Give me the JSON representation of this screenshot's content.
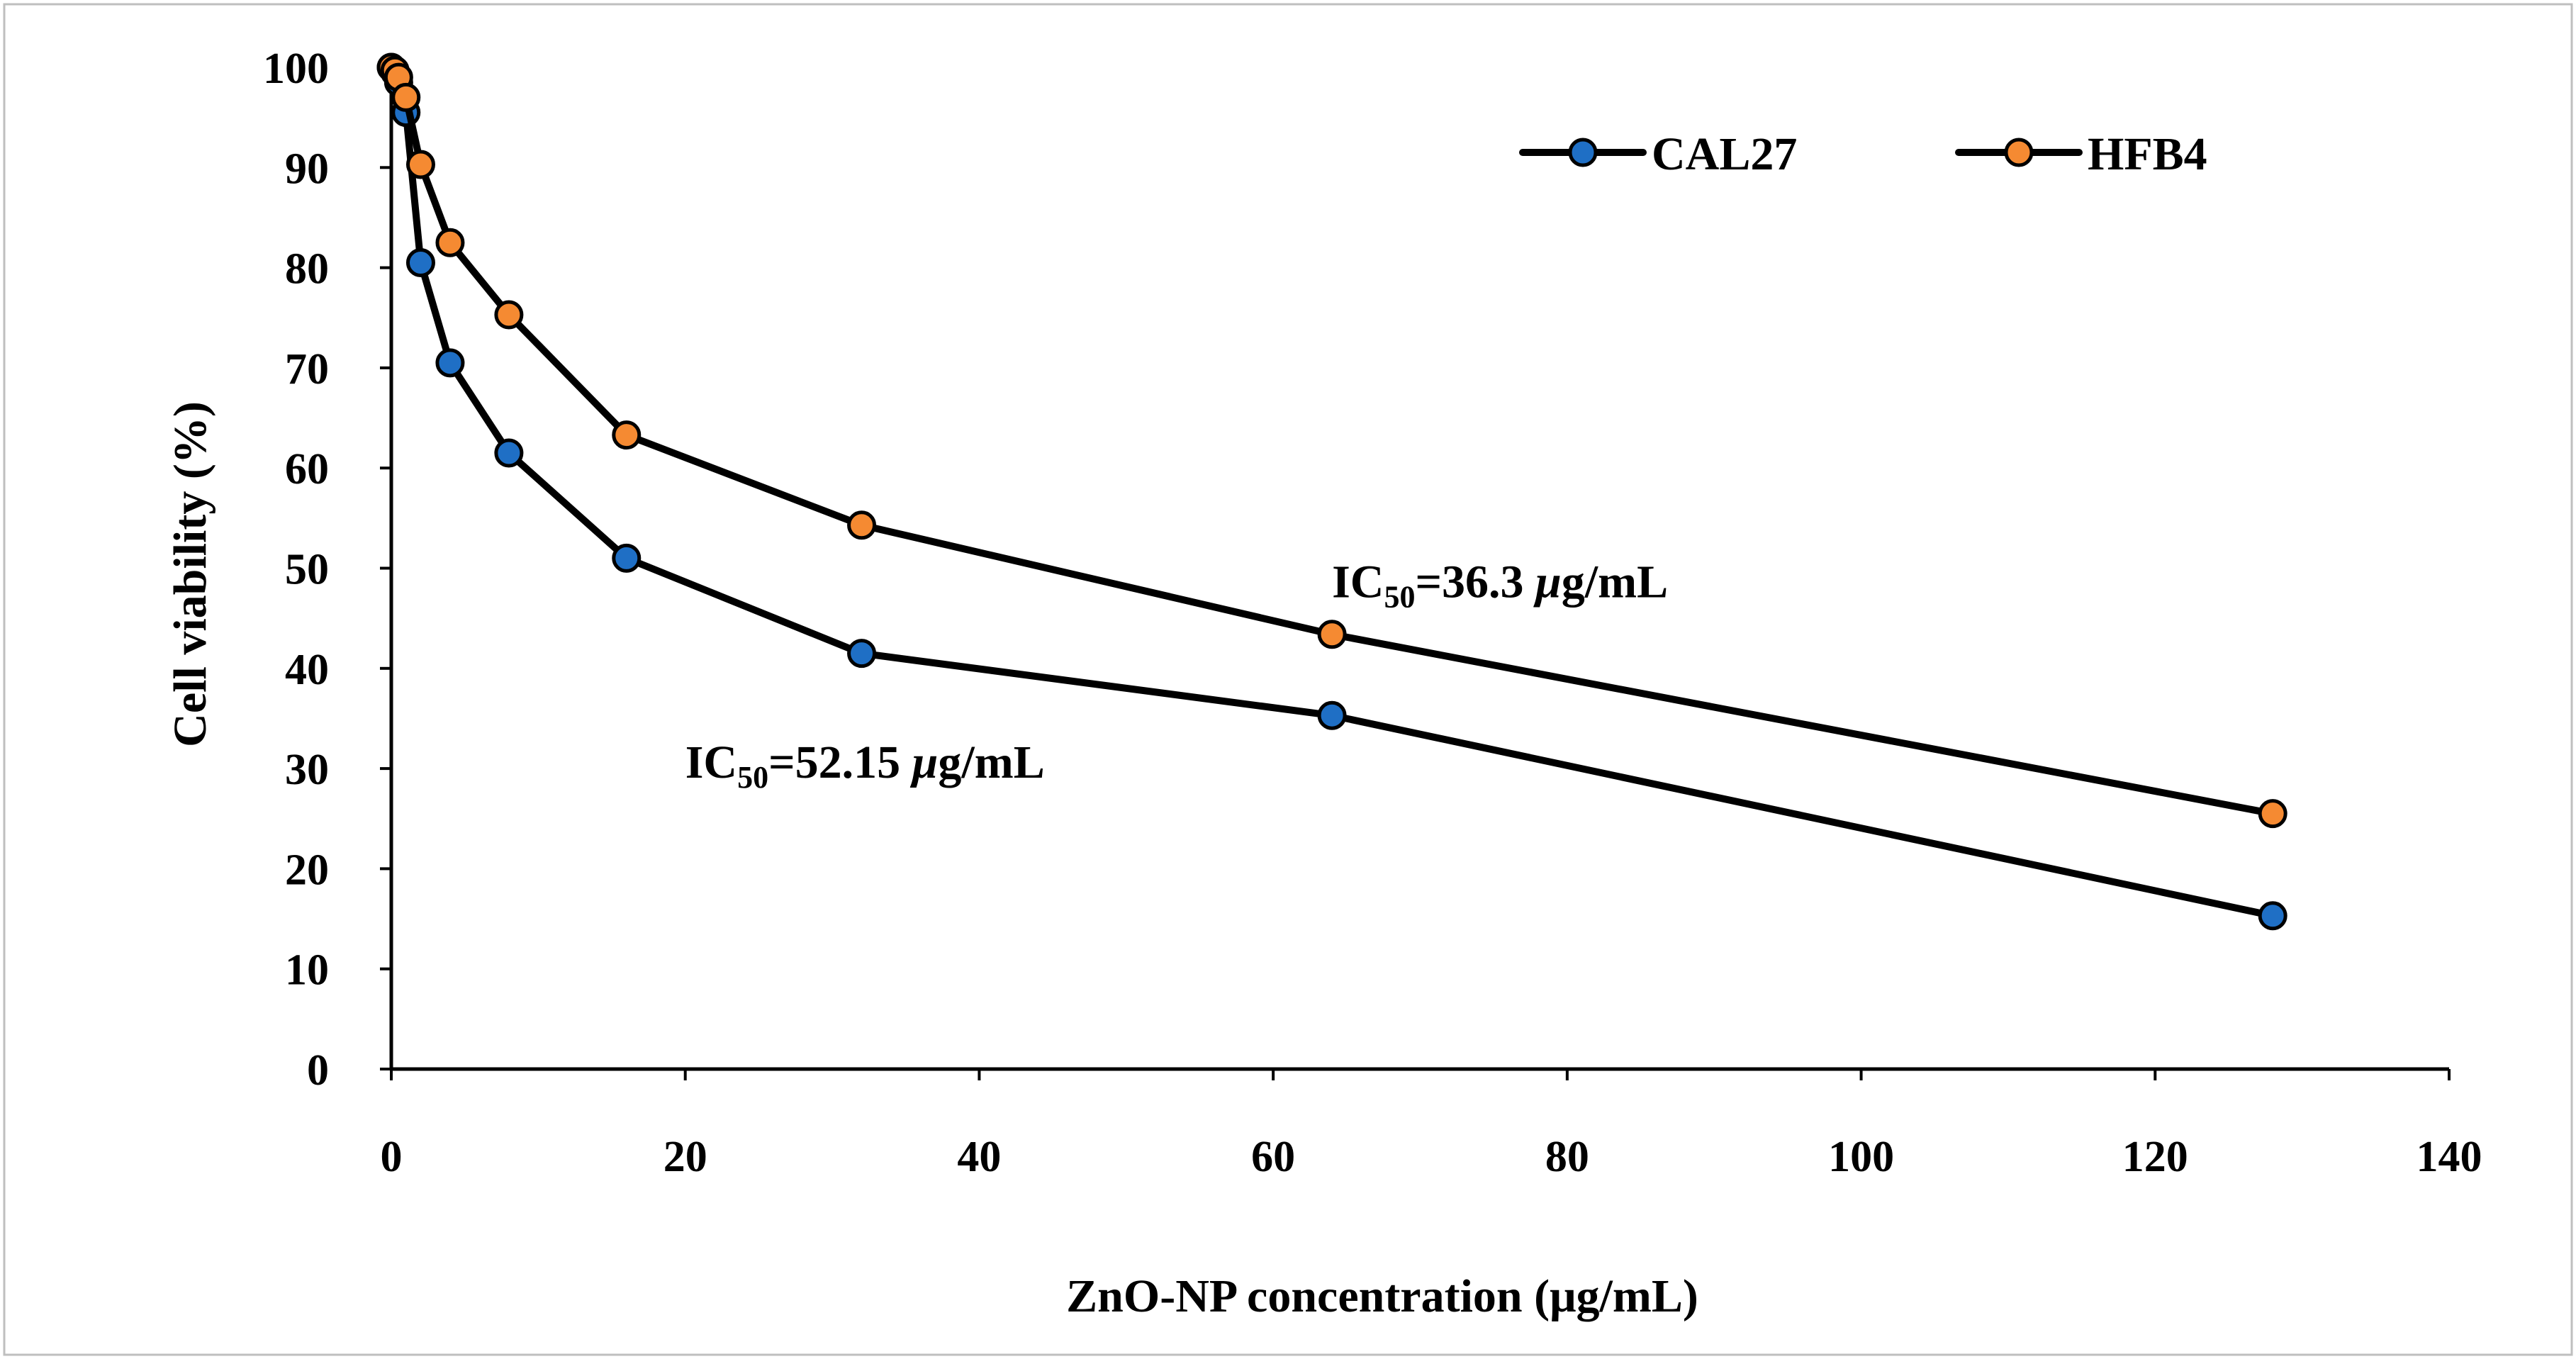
{
  "chart_data": {
    "type": "line",
    "title": "",
    "xlabel": "ZnO-NP concentration (μg/mL)",
    "ylabel": "Cell viability (%)",
    "xlim": [
      0,
      140
    ],
    "ylim": [
      0,
      100
    ],
    "xticks": [
      0,
      20,
      40,
      60,
      80,
      100,
      120,
      140
    ],
    "yticks": [
      0,
      10,
      20,
      30,
      40,
      50,
      60,
      70,
      80,
      90,
      100
    ],
    "grid": false,
    "legend_position": "top-right",
    "series": [
      {
        "name": "CAL27",
        "color": "#1f6fc5",
        "x": [
          0,
          0.25,
          0.5,
          1,
          2,
          4,
          8,
          16,
          32,
          64,
          128
        ],
        "y": [
          100,
          99.5,
          98.5,
          95.5,
          80.5,
          70.5,
          61.5,
          51,
          41.5,
          35.3,
          15.3
        ]
      },
      {
        "name": "HFB4",
        "color": "#f58a32",
        "x": [
          0,
          0.25,
          0.5,
          1,
          2,
          4,
          8,
          16,
          32,
          64,
          128
        ],
        "y": [
          100,
          99.7,
          99,
          97,
          90.3,
          82.5,
          75.3,
          63.3,
          54.3,
          43.4,
          25.5
        ]
      }
    ],
    "annotations": [
      {
        "prefix": "IC",
        "sub": "50",
        "value": "=36.3 ",
        "unit_mu": "μ",
        "unit_rest": "g/mL",
        "x": 64,
        "y": 48.5
      },
      {
        "prefix": "IC",
        "sub": "50",
        "value": "=52.15 ",
        "unit_mu": "μ",
        "unit_rest": "g/mL",
        "x": 20,
        "y": 30.5
      }
    ]
  }
}
